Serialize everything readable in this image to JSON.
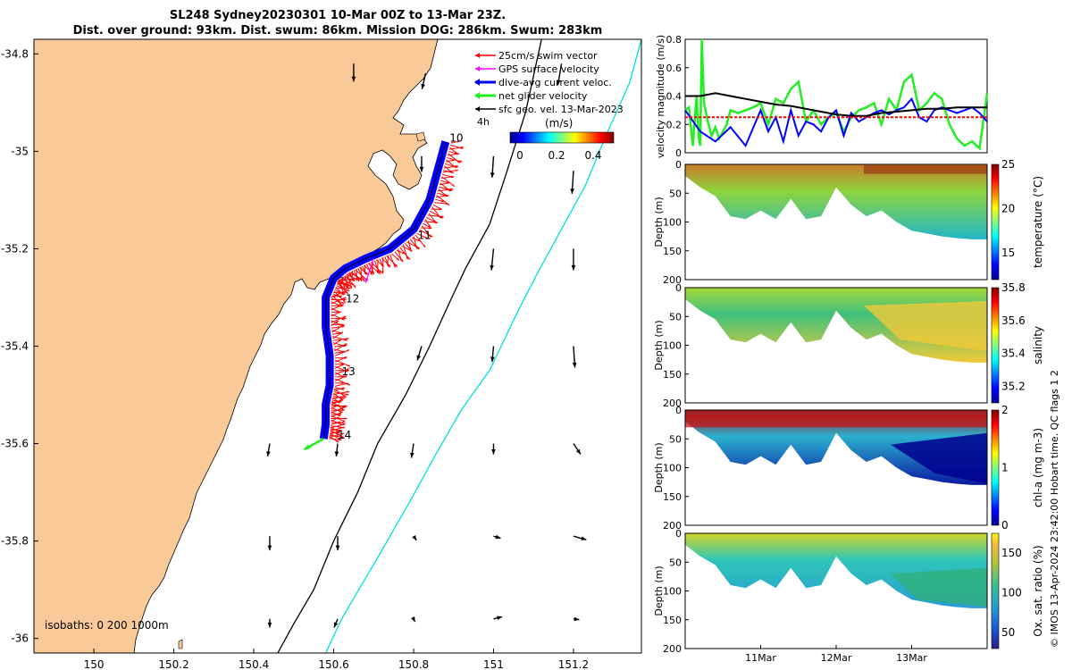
{
  "title_line1": "SL248 Sydney20230301 10-Mar 00Z to 13-Mar 23Z.",
  "title_line2": "Dist. over ground: 93km. Dist. swum: 86km. Mission DOG: 286km. Swum: 283km",
  "credit": "© IMOS 13-Apr-2024 23:42:00 Hobart time. QC flags 1  2",
  "colors": {
    "land": "#f9c998",
    "swim": "#ff0000",
    "gps": "#ff00ff",
    "dive_avg": "#0000ff",
    "net": "#22ee22",
    "geo": "#000000",
    "isobath_200": "#000000",
    "isobath_1000": "#00e0e0"
  },
  "chart_data": [
    {
      "type": "map",
      "name": "glider track map",
      "title": "SL248 Sydney20230301 10-Mar 00Z to 13-Mar 23Z.",
      "xlim": [
        149.85,
        151.37
      ],
      "ylim": [
        -36.03,
        -34.77
      ],
      "xticks": [
        150,
        150.2,
        150.4,
        150.6,
        150.8,
        151,
        151.2
      ],
      "xtick_labels": [
        "150",
        "150.2",
        "150.4",
        "150.6",
        "150.8",
        "151",
        "151.2"
      ],
      "yticks": [
        -34.8,
        -35,
        -35.2,
        -35.4,
        -35.6,
        -35.8,
        -36
      ],
      "ytick_labels": [
        "-34.8",
        "-35",
        "-35.2",
        "-35.4",
        "-35.6",
        "-35.8",
        "-36"
      ],
      "legend": [
        "25cm/s swim vector",
        "GPS surface velocity",
        "dive-avg current veloc.",
        "net glider velocity",
        "sfc geo. vel. 13-Mar-2023"
      ],
      "legend_interval": "4h",
      "colorbar": {
        "label": "(m/s)",
        "ticks": [
          "0",
          "0.2",
          "0.4"
        ],
        "range": [
          0,
          0.5
        ]
      },
      "day_labels": [
        {
          "text": "10",
          "lon": 150.89,
          "lat": -34.98
        },
        {
          "text": "11",
          "lon": 150.81,
          "lat": -35.18
        },
        {
          "text": "12",
          "lon": 150.63,
          "lat": -35.31
        },
        {
          "text": "13",
          "lon": 150.62,
          "lat": -35.46
        },
        {
          "text": "14",
          "lon": 150.61,
          "lat": -35.59
        }
      ],
      "track": {
        "lon": [
          150.88,
          150.86,
          150.84,
          150.8,
          150.74,
          150.68,
          150.63,
          150.6,
          150.58,
          150.58,
          150.59,
          150.59,
          150.58,
          150.58,
          150.575
        ],
        "lat": [
          -34.98,
          -35.04,
          -35.1,
          -35.16,
          -35.2,
          -35.22,
          -35.24,
          -35.26,
          -35.3,
          -35.36,
          -35.42,
          -35.48,
          -35.52,
          -35.56,
          -35.59
        ]
      },
      "isobaths": {
        "label": "isobaths: 0   200  1000m",
        "i200": {
          "lon": [
            151.12,
            151.08,
            151.03,
            150.99,
            150.93,
            150.89,
            150.84,
            150.78,
            150.71,
            150.66,
            150.6,
            150.55,
            150.5,
            150.46
          ],
          "lat": [
            -34.77,
            -34.92,
            -35.05,
            -35.15,
            -35.24,
            -35.31,
            -35.4,
            -35.5,
            -35.6,
            -35.7,
            -35.8,
            -35.9,
            -35.97,
            -36.03
          ]
        },
        "i1000": {
          "lon": [
            151.37,
            151.34,
            151.28,
            151.23,
            151.17,
            151.11,
            151.06,
            150.99,
            150.92,
            150.85,
            150.79,
            150.72,
            150.67,
            150.62,
            150.58
          ],
          "lat": [
            -34.77,
            -34.86,
            -34.97,
            -35.07,
            -35.16,
            -35.25,
            -35.33,
            -35.45,
            -35.53,
            -35.63,
            -35.72,
            -35.82,
            -35.89,
            -35.96,
            -36.03
          ]
        }
      },
      "current_vectors": [
        {
          "lon": 150.65,
          "lat": -34.82,
          "u": 0.0,
          "v": -0.25
        },
        {
          "lon": 150.83,
          "lat": -34.84,
          "u": -0.05,
          "v": -0.22
        },
        {
          "lon": 151.17,
          "lat": -34.82,
          "u": -0.05,
          "v": -0.3
        },
        {
          "lon": 150.82,
          "lat": -35.01,
          "u": 0.0,
          "v": -0.22
        },
        {
          "lon": 151.0,
          "lat": -35.01,
          "u": -0.02,
          "v": -0.3
        },
        {
          "lon": 151.2,
          "lat": -35.04,
          "u": -0.02,
          "v": -0.32
        },
        {
          "lon": 151.0,
          "lat": -35.2,
          "u": -0.03,
          "v": -0.3
        },
        {
          "lon": 151.2,
          "lat": -35.2,
          "u": 0.0,
          "v": -0.3
        },
        {
          "lon": 150.82,
          "lat": -35.4,
          "u": -0.06,
          "v": -0.2
        },
        {
          "lon": 151.0,
          "lat": -35.4,
          "u": -0.02,
          "v": -0.22
        },
        {
          "lon": 151.2,
          "lat": -35.4,
          "u": 0.02,
          "v": -0.3
        },
        {
          "lon": 150.44,
          "lat": -35.6,
          "u": -0.03,
          "v": -0.18
        },
        {
          "lon": 150.61,
          "lat": -35.6,
          "u": -0.02,
          "v": -0.18
        },
        {
          "lon": 150.8,
          "lat": -35.6,
          "u": -0.03,
          "v": -0.2
        },
        {
          "lon": 151.0,
          "lat": -35.6,
          "u": 0.0,
          "v": -0.15
        },
        {
          "lon": 151.2,
          "lat": -35.6,
          "u": 0.1,
          "v": -0.15
        },
        {
          "lon": 150.44,
          "lat": -35.79,
          "u": 0.0,
          "v": -0.2
        },
        {
          "lon": 150.61,
          "lat": -35.79,
          "u": 0.0,
          "v": -0.2
        },
        {
          "lon": 150.8,
          "lat": -35.79,
          "u": 0.04,
          "v": -0.06
        },
        {
          "lon": 151.0,
          "lat": -35.79,
          "u": 0.1,
          "v": -0.03
        },
        {
          "lon": 151.2,
          "lat": -35.79,
          "u": 0.18,
          "v": -0.05
        },
        {
          "lon": 150.44,
          "lat": -35.96,
          "u": 0.0,
          "v": -0.12
        },
        {
          "lon": 150.61,
          "lat": -35.96,
          "u": -0.05,
          "v": -0.12
        },
        {
          "lon": 150.8,
          "lat": -35.96,
          "u": 0.02,
          "v": -0.04
        },
        {
          "lon": 151.0,
          "lat": -35.96,
          "u": 0.12,
          "v": 0.03
        },
        {
          "lon": 151.2,
          "lat": -35.96,
          "u": 0.08,
          "v": -0.01
        }
      ]
    },
    {
      "type": "line",
      "name": "velocity magnitude",
      "ylabel": "velocity magnitude (m/s)",
      "ylim": [
        0,
        0.8
      ],
      "yticks": [
        0,
        0.2,
        0.4,
        0.6,
        0.8
      ],
      "xlim": [
        0,
        4
      ],
      "series": [
        {
          "name": "net glider velocity",
          "color": "#22ee22",
          "x": [
            0,
            0.05,
            0.1,
            0.15,
            0.18,
            0.2,
            0.22,
            0.25,
            0.3,
            0.35,
            0.4,
            0.45,
            0.5,
            0.55,
            0.6,
            0.7,
            0.8,
            0.9,
            1.0,
            1.1,
            1.2,
            1.3,
            1.4,
            1.5,
            1.6,
            1.7,
            1.8,
            1.9,
            2.0,
            2.1,
            2.2,
            2.3,
            2.4,
            2.5,
            2.6,
            2.7,
            2.8,
            2.9,
            3.0,
            3.1,
            3.2,
            3.3,
            3.4,
            3.5,
            3.6,
            3.7,
            3.8,
            3.9,
            4.0
          ],
          "y": [
            0.3,
            0.32,
            0.05,
            0.4,
            0.1,
            0.05,
            0.8,
            0.35,
            0.22,
            0.12,
            0.18,
            0.1,
            0.15,
            0.2,
            0.3,
            0.28,
            0.3,
            0.32,
            0.35,
            0.2,
            0.38,
            0.35,
            0.45,
            0.5,
            0.22,
            0.3,
            0.2,
            0.25,
            0.28,
            0.15,
            0.25,
            0.3,
            0.32,
            0.35,
            0.2,
            0.38,
            0.3,
            0.5,
            0.55,
            0.3,
            0.35,
            0.42,
            0.38,
            0.2,
            0.1,
            0.05,
            0.08,
            0.03,
            0.42
          ]
        },
        {
          "name": "dive-avg current",
          "color": "#0000ff",
          "x": [
            0,
            0.2,
            0.4,
            0.6,
            0.8,
            1.0,
            1.1,
            1.2,
            1.3,
            1.4,
            1.5,
            1.6,
            1.7,
            1.8,
            1.9,
            2.0,
            2.1,
            2.2,
            2.3,
            2.4,
            2.5,
            2.6,
            2.7,
            2.8,
            2.9,
            3.0,
            3.1,
            3.2,
            3.3,
            3.4,
            3.5,
            3.6,
            3.7,
            3.8,
            3.9,
            4.0
          ],
          "y": [
            0.3,
            0.15,
            0.08,
            0.18,
            0.05,
            0.3,
            0.15,
            0.25,
            0.08,
            0.3,
            0.12,
            0.22,
            0.2,
            0.15,
            0.25,
            0.3,
            0.12,
            0.28,
            0.22,
            0.25,
            0.28,
            0.3,
            0.27,
            0.3,
            0.32,
            0.38,
            0.25,
            0.22,
            0.3,
            0.32,
            0.3,
            0.28,
            0.3,
            0.32,
            0.28,
            0.22
          ]
        },
        {
          "name": "sfc geo velocity",
          "color": "#000000",
          "x": [
            0,
            0.2,
            0.4,
            0.6,
            0.8,
            1.0,
            1.2,
            1.4,
            1.6,
            1.8,
            2.0,
            2.2,
            2.4,
            2.6,
            2.8,
            3.0,
            3.2,
            3.4,
            3.6,
            3.8,
            4.0
          ],
          "y": [
            0.4,
            0.4,
            0.42,
            0.4,
            0.38,
            0.36,
            0.34,
            0.33,
            0.31,
            0.29,
            0.27,
            0.26,
            0.26,
            0.28,
            0.29,
            0.3,
            0.31,
            0.31,
            0.32,
            0.32,
            0.32
          ]
        },
        {
          "name": "swim",
          "color": "#ff0000",
          "x": [
            0,
            4
          ],
          "y": [
            0.25,
            0.25
          ]
        }
      ]
    },
    {
      "type": "heatmap",
      "name": "temperature section",
      "ylabel": "Depth (m)",
      "ylim": [
        0,
        200
      ],
      "yticks": [
        0,
        50,
        100,
        150,
        200
      ],
      "colorbar_label": "temperature (°C)",
      "crange": [
        12,
        25
      ],
      "cticks": [
        15,
        20,
        25
      ],
      "profile_depth_m": [
        20,
        40,
        55,
        90,
        95,
        80,
        95,
        60,
        95,
        90,
        40,
        70,
        90,
        80,
        100,
        115,
        120,
        125,
        128,
        130,
        130
      ]
    },
    {
      "type": "heatmap",
      "name": "salinity section",
      "ylabel": "Depth (m)",
      "ylim": [
        0,
        200
      ],
      "yticks": [
        0,
        50,
        100,
        150,
        200
      ],
      "colorbar_label": "salinity",
      "crange": [
        35.1,
        35.8
      ],
      "cticks": [
        35.2,
        35.4,
        35.6,
        35.8
      ],
      "profile_depth_m": [
        20,
        40,
        55,
        90,
        95,
        80,
        95,
        60,
        95,
        90,
        40,
        70,
        90,
        80,
        100,
        115,
        120,
        125,
        128,
        130,
        130
      ]
    },
    {
      "type": "heatmap",
      "name": "chlorophyll-a section",
      "ylabel": "Depth (m)",
      "ylim": [
        0,
        200
      ],
      "yticks": [
        0,
        50,
        100,
        150,
        200
      ],
      "colorbar_label": "chl-a (mg m-3)",
      "crange": [
        0,
        2
      ],
      "cticks": [
        0,
        1,
        2
      ],
      "profile_depth_m": [
        20,
        40,
        55,
        90,
        95,
        80,
        95,
        60,
        95,
        90,
        40,
        70,
        90,
        80,
        100,
        115,
        120,
        125,
        128,
        130,
        130
      ]
    },
    {
      "type": "heatmap",
      "name": "oxygen saturation section",
      "ylabel": "Depth (m)",
      "ylim": [
        0,
        200
      ],
      "yticks": [
        0,
        50,
        100,
        150,
        200
      ],
      "xtick_labels": [
        "11Mar",
        "12Mar",
        "13Mar"
      ],
      "xticks_days": [
        1,
        2,
        3
      ],
      "colorbar_label": "Ox. sat. ratio (%)",
      "crange": [
        30,
        175
      ],
      "cticks": [
        50,
        100,
        150
      ],
      "profile_depth_m": [
        20,
        40,
        55,
        90,
        95,
        80,
        95,
        60,
        95,
        90,
        40,
        70,
        90,
        80,
        100,
        115,
        120,
        125,
        128,
        130,
        130
      ]
    }
  ]
}
